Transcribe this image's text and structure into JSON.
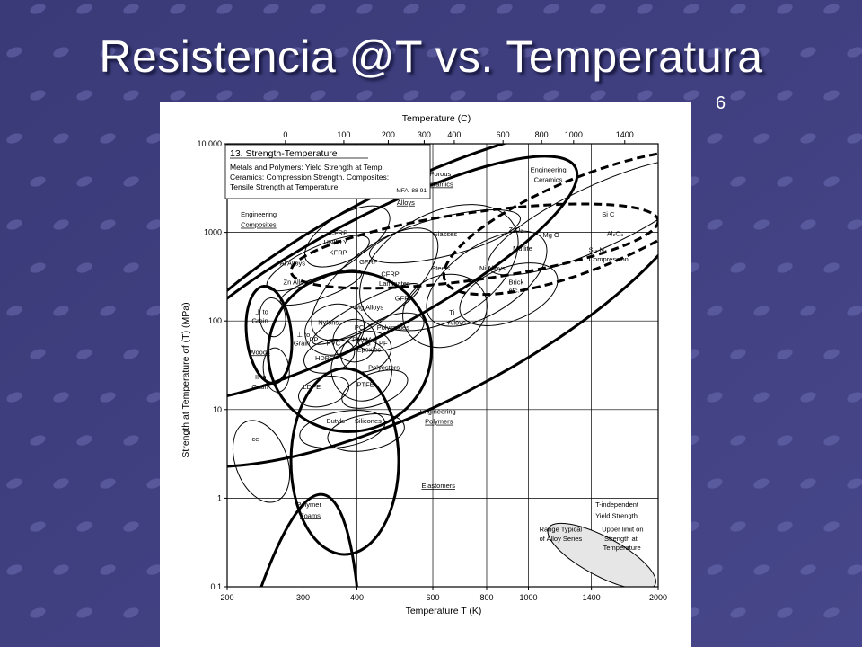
{
  "slide": {
    "title": "Resistencia @T vs. Temperatura",
    "number": "6",
    "colors": {
      "background": "#3f3f7c",
      "dots": "#6b6bb0",
      "title": "#ffffff"
    }
  },
  "chart_data": {
    "type": "scatter",
    "title": "13. Strength-Temperature",
    "subtitle_lines": [
      "Metals and Polymers: Yield Strength at Temp.",
      "Ceramics: Compression Strength. Composites:",
      "Tensile Strength at Temperature."
    ],
    "code": "MFA: 88-91",
    "xlabel": "Temperature T (K)",
    "x2label": "Temperature (C)",
    "ylabel": "Strength at Temperature σf (T) (MPa)",
    "x_ticks": [
      {
        "value": 200,
        "label": "200"
      },
      {
        "value": 300,
        "label": "300"
      },
      {
        "value": 400,
        "label": "400"
      },
      {
        "value": 600,
        "label": "600"
      },
      {
        "value": 800,
        "label": "800"
      },
      {
        "value": 1000,
        "label": "1000"
      },
      {
        "value": 1400,
        "label": "1400"
      },
      {
        "value": 2000,
        "label": "2000"
      }
    ],
    "x2_ticks": [
      {
        "value": 0,
        "label": "0"
      },
      {
        "value": 100,
        "label": "100"
      },
      {
        "value": 200,
        "label": "200"
      },
      {
        "value": 300,
        "label": "300"
      },
      {
        "value": 400,
        "label": "400"
      },
      {
        "value": 600,
        "label": "600"
      },
      {
        "value": 800,
        "label": "800"
      },
      {
        "value": 1000,
        "label": "1000"
      },
      {
        "value": 1400,
        "label": "1400"
      }
    ],
    "y_ticks": [
      {
        "value": 0.1,
        "label": "0.1"
      },
      {
        "value": 1,
        "label": "1"
      },
      {
        "value": 10,
        "label": "10"
      },
      {
        "value": 100,
        "label": "100"
      },
      {
        "value": 1000,
        "label": "1000"
      },
      {
        "value": 10000,
        "label": "10 000"
      }
    ],
    "xlim": [
      200,
      2000
    ],
    "ylim": [
      0.1,
      10000
    ],
    "x_scale": "log",
    "y_scale": "log",
    "grid": true,
    "regions": [
      {
        "id": "engineering-alloys",
        "style": "bold",
        "cx": 560,
        "cy": 200,
        "rx": 0.73,
        "ry": 1.22,
        "rot": -27
      },
      {
        "id": "engineering-composites",
        "style": "bold",
        "cx": 420,
        "cy": 300,
        "rx": 0.55,
        "ry": 0.65,
        "rot": -28
      },
      {
        "id": "porous-ceramics",
        "style": "dashed",
        "cx": 750,
        "cy": 700,
        "rx": 0.43,
        "ry": 0.38,
        "rot": -8
      },
      {
        "id": "engineering-ceramics",
        "style": "dashed",
        "cx": 1380,
        "cy": 1300,
        "rx": 0.36,
        "ry": 0.52,
        "rot": -22
      },
      {
        "id": "engineering-polymers",
        "style": "bold",
        "cx": 385,
        "cy": 45,
        "rx": 0.19,
        "ry": 0.9,
        "rot": -18
      },
      {
        "id": "woods",
        "style": "bold",
        "cx": 250,
        "cy": 70,
        "rx": 0.052,
        "ry": 0.55,
        "rot": -6
      },
      {
        "id": "elastomers",
        "style": "bold",
        "cx": 375,
        "cy": 2.6,
        "rx": 0.125,
        "ry": 1.05,
        "rot": 0
      },
      {
        "id": "ice",
        "style": "normal",
        "cx": 240,
        "cy": 2.6,
        "rx": 0.06,
        "ry": 0.48,
        "rot": -20
      },
      {
        "id": "typical-range",
        "style": "normal",
        "cx": 1480,
        "cy": 0.22,
        "rx": 0.14,
        "ry": 0.22,
        "rot": 28
      },
      {
        "id": "cfrp",
        "style": "normal",
        "cx": 380,
        "cy": 900,
        "rx": 0.11,
        "ry": 0.25,
        "rot": -30
      },
      {
        "id": "gfrp",
        "style": "normal",
        "cx": 440,
        "cy": 260,
        "rx": 0.18,
        "ry": 0.38,
        "rot": -40
      },
      {
        "id": "al-alloys",
        "style": "normal",
        "cx": 325,
        "cy": 450,
        "rx": 0.13,
        "ry": 0.18,
        "rot": -25
      },
      {
        "id": "zn-alloys",
        "style": "normal",
        "cx": 330,
        "cy": 240,
        "rx": 0.1,
        "ry": 0.12,
        "rot": -20
      },
      {
        "id": "mg-alloys",
        "style": "normal",
        "cx": 420,
        "cy": 120,
        "rx": 0.14,
        "ry": 0.14,
        "rot": -28
      },
      {
        "id": "glasses",
        "style": "normal",
        "cx": 640,
        "cy": 900,
        "rx": 0.18,
        "ry": 0.22,
        "rot": -14
      },
      {
        "id": "steels",
        "style": "normal",
        "cx": 620,
        "cy": 400,
        "rx": 0.2,
        "ry": 0.6,
        "rot": -30
      },
      {
        "id": "ni-alloys",
        "style": "normal",
        "cx": 800,
        "cy": 300,
        "rx": 0.16,
        "ry": 0.38,
        "rot": -34
      },
      {
        "id": "ti-alloys",
        "style": "normal",
        "cx": 640,
        "cy": 130,
        "rx": 0.1,
        "ry": 0.4,
        "rot": -22
      },
      {
        "id": "brick",
        "style": "normal",
        "cx": 900,
        "cy": 200,
        "rx": 0.12,
        "ry": 0.3,
        "rot": -22
      },
      {
        "id": "sic",
        "style": "normal",
        "cx": 1450,
        "cy": 1500,
        "rx": 0.28,
        "ry": 0.35,
        "rot": -25
      },
      {
        "id": "polyimides",
        "style": "normal",
        "cx": 480,
        "cy": 75,
        "rx": 0.08,
        "ry": 0.18,
        "rot": -20
      },
      {
        "id": "nylons",
        "style": "normal",
        "cx": 355,
        "cy": 80,
        "rx": 0.07,
        "ry": 0.28,
        "rot": -20
      },
      {
        "id": "pc",
        "style": "normal",
        "cx": 395,
        "cy": 60,
        "rx": 0.05,
        "ry": 0.24,
        "rot": -20
      },
      {
        "id": "epoxies",
        "style": "normal",
        "cx": 420,
        "cy": 45,
        "rx": 0.06,
        "ry": 0.22,
        "rot": -20
      },
      {
        "id": "polyesters",
        "style": "normal",
        "cx": 410,
        "cy": 28,
        "rx": 0.07,
        "ry": 0.35,
        "rot": -20
      },
      {
        "id": "ptfe",
        "style": "normal",
        "cx": 440,
        "cy": 17,
        "rx": 0.08,
        "ry": 0.18,
        "rot": -20
      },
      {
        "id": "hdpe",
        "style": "normal",
        "cx": 345,
        "cy": 40,
        "rx": 0.06,
        "ry": 0.18,
        "rot": -16
      },
      {
        "id": "ldpe",
        "style": "normal",
        "cx": 335,
        "cy": 16,
        "rx": 0.06,
        "ry": 0.16,
        "rot": -16
      },
      {
        "id": "butyls",
        "style": "normal",
        "cx": 370,
        "cy": 6,
        "rx": 0.1,
        "ry": 0.2,
        "rot": -10
      },
      {
        "id": "silicones",
        "style": "normal",
        "cx": 420,
        "cy": 5.5,
        "rx": 0.09,
        "ry": 0.2,
        "rot": -10
      },
      {
        "id": "wood-perp",
        "style": "normal",
        "cx": 255,
        "cy": 110,
        "rx": 0.03,
        "ry": 0.22,
        "rot": -6
      },
      {
        "id": "wood-par",
        "style": "normal",
        "cx": 260,
        "cy": 28,
        "rx": 0.03,
        "ry": 0.25,
        "rot": -6
      }
    ],
    "labels": [
      {
        "text": "Engineering",
        "x": 215,
        "y": 1500,
        "underline": false
      },
      {
        "text": "Composites",
        "x": 215,
        "y": 1150,
        "underline": true
      },
      {
        "text": "Porous",
        "x": 590,
        "y": 4300,
        "underline": false
      },
      {
        "text": "Ceramics",
        "x": 575,
        "y": 3300,
        "underline": true
      },
      {
        "text": "Engineering",
        "x": 480,
        "y": 2700,
        "underline": false
      },
      {
        "text": "Alloys",
        "x": 495,
        "y": 2050,
        "underline": true
      },
      {
        "text": "Engineering",
        "x": 1010,
        "y": 4800,
        "underline": false
      },
      {
        "text": "Ceramics",
        "x": 1030,
        "y": 3700,
        "underline": false
      },
      {
        "text": "CFRP",
        "x": 345,
        "y": 930,
        "underline": false
      },
      {
        "text": "UNIPLY",
        "x": 335,
        "y": 730,
        "underline": false
      },
      {
        "text": "KFRP",
        "x": 345,
        "y": 560,
        "underline": false
      },
      {
        "text": "GFRP",
        "x": 405,
        "y": 440,
        "underline": false
      },
      {
        "text": "CFRP",
        "x": 455,
        "y": 320,
        "underline": false
      },
      {
        "text": "Laminates",
        "x": 450,
        "y": 250,
        "underline": false
      },
      {
        "text": "GFRP",
        "x": 490,
        "y": 170,
        "underline": false
      },
      {
        "text": "Al Alloys",
        "x": 265,
        "y": 420,
        "underline": false
      },
      {
        "text": "Zn Alloys",
        "x": 270,
        "y": 260,
        "underline": false
      },
      {
        "text": "Mg Alloys",
        "x": 395,
        "y": 135,
        "underline": false
      },
      {
        "text": "Glasses",
        "x": 600,
        "y": 900,
        "underline": false
      },
      {
        "text": "Steels",
        "x": 595,
        "y": 370,
        "underline": false
      },
      {
        "text": "Ni Alloys",
        "x": 770,
        "y": 370,
        "underline": false
      },
      {
        "text": "Brick",
        "x": 900,
        "y": 260,
        "underline": false
      },
      {
        "text": "etc.",
        "x": 900,
        "y": 210,
        "underline": false
      },
      {
        "text": "Ti",
        "x": 655,
        "y": 118,
        "underline": false
      },
      {
        "text": "Alloys",
        "x": 650,
        "y": 90,
        "underline": false
      },
      {
        "text": "ZrO₂",
        "x": 900,
        "y": 1010,
        "underline": false
      },
      {
        "text": "Si C",
        "x": 1480,
        "y": 1500,
        "underline": false
      },
      {
        "text": "Mg O",
        "x": 1080,
        "y": 880,
        "underline": false
      },
      {
        "text": "Al₂O₃",
        "x": 1520,
        "y": 910,
        "underline": false
      },
      {
        "text": "Mullite",
        "x": 920,
        "y": 620,
        "underline": false
      },
      {
        "text": "Si₃ N₄",
        "x": 1380,
        "y": 600,
        "underline": false
      },
      {
        "text": "Compression",
        "x": 1380,
        "y": 470,
        "underline": false
      },
      {
        "text": "Nylons",
        "x": 325,
        "y": 90,
        "underline": false
      },
      {
        "text": "PC",
        "x": 395,
        "y": 80,
        "underline": false
      },
      {
        "text": "PMMA",
        "x": 390,
        "y": 58,
        "underline": false
      },
      {
        "text": "PVC",
        "x": 340,
        "y": 53,
        "underline": false
      },
      {
        "text": "PP",
        "x": 310,
        "y": 58,
        "underline": false
      },
      {
        "text": "PS",
        "x": 410,
        "y": 53,
        "underline": false
      },
      {
        "text": "PF",
        "x": 450,
        "y": 53,
        "underline": false
      },
      {
        "text": "Epoxies",
        "x": 400,
        "y": 45,
        "underline": false
      },
      {
        "text": "HDPE",
        "x": 320,
        "y": 36,
        "underline": false
      },
      {
        "text": "Polyimides",
        "x": 445,
        "y": 80,
        "underline": false
      },
      {
        "text": "Polyesters",
        "x": 425,
        "y": 28,
        "underline": false
      },
      {
        "text": "PTFE",
        "x": 400,
        "y": 18,
        "underline": false
      },
      {
        "text": "LDPE",
        "x": 300,
        "y": 17,
        "underline": false
      },
      {
        "text": "Butyls",
        "x": 340,
        "y": 7,
        "underline": false
      },
      {
        "text": "Silicones",
        "x": 395,
        "y": 7,
        "underline": false
      },
      {
        "text": "⊥ to",
        "x": 232,
        "y": 120,
        "underline": false
      },
      {
        "text": "Grain",
        "x": 228,
        "y": 95,
        "underline": false
      },
      {
        "text": "⊥ to",
        "x": 290,
        "y": 66,
        "underline": false
      },
      {
        "text": "Grain",
        "x": 285,
        "y": 53,
        "underline": false
      },
      {
        "text": "Woods",
        "x": 225,
        "y": 42,
        "underline": true
      },
      {
        "text": "II to",
        "x": 232,
        "y": 22,
        "underline": false
      },
      {
        "text": "Grain",
        "x": 228,
        "y": 17,
        "underline": false
      },
      {
        "text": "Ice",
        "x": 226,
        "y": 4.4,
        "underline": false
      },
      {
        "text": "Engineering",
        "x": 560,
        "y": 9,
        "underline": false
      },
      {
        "text": "Polymers",
        "x": 575,
        "y": 6.9,
        "underline": true
      },
      {
        "text": "Elastomers",
        "x": 565,
        "y": 1.3,
        "underline": true
      },
      {
        "text": "Polymer",
        "x": 290,
        "y": 0.8,
        "underline": false
      },
      {
        "text": "Foams",
        "x": 295,
        "y": 0.6,
        "underline": true
      },
      {
        "text": "T-independent",
        "x": 1430,
        "y": 0.8,
        "underline": false
      },
      {
        "text": "Yield Strength",
        "x": 1430,
        "y": 0.6,
        "underline": false
      },
      {
        "text": "Range Typical",
        "x": 1060,
        "y": 0.42,
        "underline": false
      },
      {
        "text": "of Alloy Series",
        "x": 1060,
        "y": 0.33,
        "underline": false
      },
      {
        "text": "Upper limit on",
        "x": 1480,
        "y": 0.42,
        "underline": false
      },
      {
        "text": "Strength at",
        "x": 1500,
        "y": 0.33,
        "underline": false
      },
      {
        "text": "Temperature",
        "x": 1490,
        "y": 0.26,
        "underline": false
      }
    ]
  }
}
